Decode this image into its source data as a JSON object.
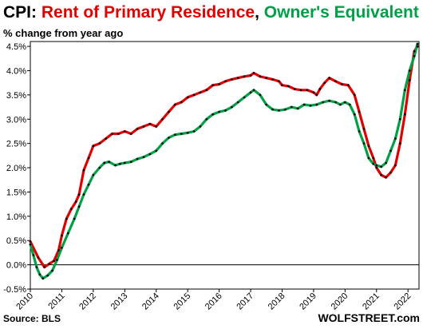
{
  "colors": {
    "rent": "#e00000",
    "oer": "#00a046",
    "title_black": "#000000",
    "points": "#000000"
  },
  "chart_data": {
    "type": "line",
    "title_parts": [
      {
        "text": "CPI: ",
        "color": "#000000"
      },
      {
        "text": "Rent of Primary  Residence",
        "color": "#e00000"
      },
      {
        "text": ", ",
        "color": "#000000"
      },
      {
        "text": "Owner's Equivalent of Rent",
        "color": "#00a046"
      }
    ],
    "subtitle": "% change from year ago",
    "ylim": [
      -0.5,
      4.6
    ],
    "yticks": [
      "-0.5%",
      "0.0%",
      "0.5%",
      "1.0%",
      "1.5%",
      "2.0%",
      "2.5%",
      "3.0%",
      "3.5%",
      "4.0%",
      "4.5%"
    ],
    "ytick_values": [
      -0.5,
      0,
      0.5,
      1.0,
      1.5,
      2.0,
      2.5,
      3.0,
      3.5,
      4.0,
      4.5
    ],
    "xlim": [
      2010.0,
      2022.35
    ],
    "xticks": [
      "2010",
      "2011",
      "2012",
      "2013",
      "2014",
      "2015",
      "2016",
      "2017",
      "2018",
      "2019",
      "2020",
      "2021",
      "2022"
    ],
    "xtick_values": [
      2010,
      2011,
      2012,
      2013,
      2014,
      2015,
      2016,
      2017,
      2018,
      2019,
      2020,
      2021,
      2022
    ],
    "zero_line": true,
    "series": [
      {
        "name": "Rent of Primary Residence",
        "color": "#e00000",
        "points": [
          [
            2010.0,
            0.48
          ],
          [
            2010.25,
            0.15
          ],
          [
            2010.45,
            -0.05
          ],
          [
            2010.6,
            0.02
          ],
          [
            2010.75,
            0.08
          ],
          [
            2010.9,
            0.3
          ],
          [
            2011.0,
            0.6
          ],
          [
            2011.15,
            0.95
          ],
          [
            2011.3,
            1.15
          ],
          [
            2011.45,
            1.3
          ],
          [
            2011.55,
            1.45
          ],
          [
            2011.7,
            1.95
          ],
          [
            2011.85,
            2.2
          ],
          [
            2012.0,
            2.45
          ],
          [
            2012.2,
            2.5
          ],
          [
            2012.4,
            2.6
          ],
          [
            2012.6,
            2.7
          ],
          [
            2012.8,
            2.7
          ],
          [
            2013.0,
            2.75
          ],
          [
            2013.2,
            2.7
          ],
          [
            2013.4,
            2.8
          ],
          [
            2013.6,
            2.85
          ],
          [
            2013.8,
            2.9
          ],
          [
            2014.0,
            2.85
          ],
          [
            2014.2,
            3.0
          ],
          [
            2014.4,
            3.15
          ],
          [
            2014.6,
            3.3
          ],
          [
            2014.8,
            3.35
          ],
          [
            2015.0,
            3.45
          ],
          [
            2015.2,
            3.5
          ],
          [
            2015.4,
            3.55
          ],
          [
            2015.6,
            3.6
          ],
          [
            2015.8,
            3.7
          ],
          [
            2016.0,
            3.72
          ],
          [
            2016.2,
            3.78
          ],
          [
            2016.4,
            3.82
          ],
          [
            2016.6,
            3.85
          ],
          [
            2016.8,
            3.88
          ],
          [
            2017.0,
            3.9
          ],
          [
            2017.1,
            3.95
          ],
          [
            2017.3,
            3.88
          ],
          [
            2017.5,
            3.85
          ],
          [
            2017.7,
            3.82
          ],
          [
            2017.9,
            3.78
          ],
          [
            2018.0,
            3.7
          ],
          [
            2018.2,
            3.68
          ],
          [
            2018.4,
            3.62
          ],
          [
            2018.6,
            3.6
          ],
          [
            2018.8,
            3.6
          ],
          [
            2019.0,
            3.55
          ],
          [
            2019.1,
            3.5
          ],
          [
            2019.2,
            3.62
          ],
          [
            2019.35,
            3.75
          ],
          [
            2019.5,
            3.85
          ],
          [
            2019.7,
            3.78
          ],
          [
            2019.9,
            3.72
          ],
          [
            2020.1,
            3.7
          ],
          [
            2020.3,
            3.5
          ],
          [
            2020.45,
            3.15
          ],
          [
            2020.6,
            2.8
          ],
          [
            2020.75,
            2.45
          ],
          [
            2020.9,
            2.2
          ],
          [
            2021.0,
            2.0
          ],
          [
            2021.15,
            1.85
          ],
          [
            2021.3,
            1.8
          ],
          [
            2021.45,
            1.9
          ],
          [
            2021.6,
            2.05
          ],
          [
            2021.75,
            2.5
          ],
          [
            2021.9,
            3.1
          ],
          [
            2022.05,
            3.8
          ],
          [
            2022.2,
            4.4
          ],
          [
            2022.3,
            4.5
          ]
        ]
      },
      {
        "name": "Owner's Equivalent of Rent",
        "color": "#00a046",
        "points": [
          [
            2010.0,
            0.42
          ],
          [
            2010.1,
            0.2
          ],
          [
            2010.2,
            -0.05
          ],
          [
            2010.3,
            -0.2
          ],
          [
            2010.4,
            -0.28
          ],
          [
            2010.55,
            -0.22
          ],
          [
            2010.7,
            -0.12
          ],
          [
            2010.85,
            0.1
          ],
          [
            2011.0,
            0.35
          ],
          [
            2011.2,
            0.65
          ],
          [
            2011.4,
            0.95
          ],
          [
            2011.55,
            1.2
          ],
          [
            2011.7,
            1.45
          ],
          [
            2011.85,
            1.65
          ],
          [
            2012.0,
            1.85
          ],
          [
            2012.2,
            2.0
          ],
          [
            2012.35,
            2.1
          ],
          [
            2012.5,
            2.12
          ],
          [
            2012.7,
            2.05
          ],
          [
            2012.85,
            2.08
          ],
          [
            2013.0,
            2.1
          ],
          [
            2013.2,
            2.12
          ],
          [
            2013.4,
            2.18
          ],
          [
            2013.6,
            2.22
          ],
          [
            2013.8,
            2.28
          ],
          [
            2014.0,
            2.35
          ],
          [
            2014.2,
            2.5
          ],
          [
            2014.4,
            2.62
          ],
          [
            2014.6,
            2.68
          ],
          [
            2014.8,
            2.7
          ],
          [
            2015.0,
            2.72
          ],
          [
            2015.2,
            2.75
          ],
          [
            2015.4,
            2.85
          ],
          [
            2015.6,
            3.0
          ],
          [
            2015.8,
            3.1
          ],
          [
            2016.0,
            3.15
          ],
          [
            2016.2,
            3.18
          ],
          [
            2016.4,
            3.25
          ],
          [
            2016.6,
            3.35
          ],
          [
            2016.8,
            3.45
          ],
          [
            2017.0,
            3.55
          ],
          [
            2017.1,
            3.6
          ],
          [
            2017.3,
            3.5
          ],
          [
            2017.5,
            3.3
          ],
          [
            2017.7,
            3.2
          ],
          [
            2017.9,
            3.18
          ],
          [
            2018.1,
            3.2
          ],
          [
            2018.3,
            3.25
          ],
          [
            2018.5,
            3.22
          ],
          [
            2018.7,
            3.3
          ],
          [
            2018.9,
            3.28
          ],
          [
            2019.1,
            3.3
          ],
          [
            2019.3,
            3.35
          ],
          [
            2019.5,
            3.38
          ],
          [
            2019.7,
            3.35
          ],
          [
            2019.85,
            3.3
          ],
          [
            2020.0,
            3.35
          ],
          [
            2020.15,
            3.3
          ],
          [
            2020.3,
            3.1
          ],
          [
            2020.45,
            2.75
          ],
          [
            2020.6,
            2.5
          ],
          [
            2020.75,
            2.2
          ],
          [
            2020.9,
            2.08
          ],
          [
            2021.0,
            2.05
          ],
          [
            2021.15,
            2.02
          ],
          [
            2021.3,
            2.1
          ],
          [
            2021.45,
            2.35
          ],
          [
            2021.6,
            2.6
          ],
          [
            2021.75,
            3.0
          ],
          [
            2021.9,
            3.6
          ],
          [
            2022.05,
            4.0
          ],
          [
            2022.2,
            4.3
          ],
          [
            2022.3,
            4.55
          ]
        ]
      }
    ],
    "source": "Source: BLS",
    "brand": "WOLFSTREET.com"
  }
}
